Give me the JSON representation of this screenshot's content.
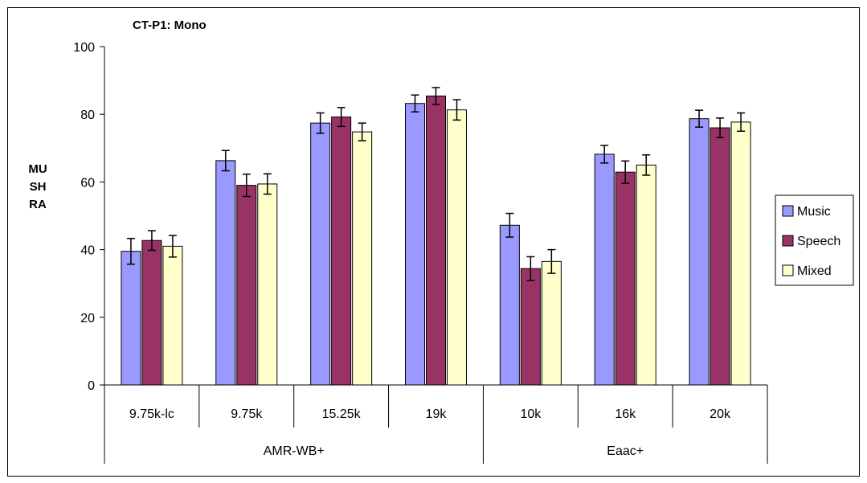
{
  "chart_data": {
    "type": "bar",
    "title": "CT-P1: Mono",
    "ylabel_lines": [
      "MU",
      "SH",
      "RA"
    ],
    "ylim": [
      0,
      100
    ],
    "yticks": [
      0,
      20,
      40,
      60,
      80,
      100
    ],
    "categories": [
      "9.75k-lc",
      "9.75k",
      "15.25k",
      "19k",
      "10k",
      "16k",
      "20k"
    ],
    "groups": [
      {
        "label": "AMR-WB+",
        "span": [
          0,
          3
        ]
      },
      {
        "label": "Eaac+",
        "span": [
          4,
          6
        ]
      }
    ],
    "series": [
      {
        "name": "Music",
        "color": "#9999ff",
        "values": [
          39.5,
          66.3,
          77.4,
          83.2,
          47.2,
          68.2,
          78.7
        ],
        "err": [
          3.8,
          3.0,
          3.0,
          2.5,
          3.5,
          2.6,
          2.5
        ]
      },
      {
        "name": "Speech",
        "color": "#993366",
        "values": [
          42.7,
          59.0,
          79.2,
          85.4,
          34.4,
          62.9,
          76.0
        ],
        "err": [
          2.9,
          3.3,
          2.8,
          2.5,
          3.5,
          3.3,
          2.9
        ]
      },
      {
        "name": "Mixed",
        "color": "#ffffcc",
        "values": [
          41.0,
          59.4,
          74.8,
          81.3,
          36.5,
          65.0,
          77.7
        ],
        "err": [
          3.2,
          3.0,
          2.6,
          3.0,
          3.5,
          3.0,
          2.7
        ]
      }
    ],
    "legend_position": "right",
    "grid": false
  }
}
